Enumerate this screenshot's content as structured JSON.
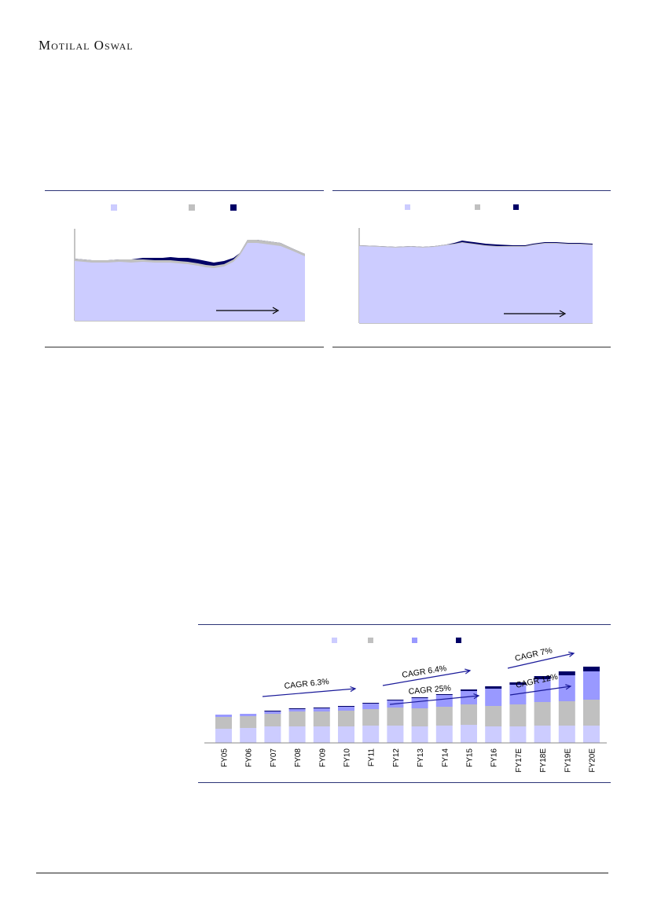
{
  "header": {
    "brand": "Motilal Oswal"
  },
  "colors": {
    "light_lavender": "#ccccff",
    "grey": "#c0c0c0",
    "medium_blue": "#9999ff",
    "navy": "#000066",
    "arrow": "#1a1a99",
    "rule": "#2c3577"
  },
  "left_chart": {
    "legend_colors": [
      "#ccccff",
      "#c0c0c0",
      "#000066"
    ]
  },
  "right_chart": {
    "legend_colors": [
      "#ccccff",
      "#c0c0c0",
      "#000066"
    ]
  },
  "chart_data": {
    "type": "bar",
    "stacked": true,
    "categories": [
      "FY05",
      "FY06",
      "FY07",
      "FY08",
      "FY09",
      "FY10",
      "FY11",
      "FY12",
      "FY13",
      "FY14",
      "FY15",
      "FY16",
      "FY17E",
      "FY18E",
      "FY19E",
      "FY20E"
    ],
    "series": [
      {
        "color": "#ccccff",
        "values": [
          18,
          19,
          21,
          21,
          21,
          21,
          22,
          22,
          21,
          22,
          23,
          21,
          21,
          22,
          22,
          22
        ]
      },
      {
        "color": "#c0c0c0",
        "values": [
          15,
          15,
          16,
          19,
          19,
          20,
          21,
          23,
          23,
          24,
          26,
          26,
          28,
          30,
          31,
          33
        ]
      },
      {
        "color": "#9999ff",
        "values": [
          3,
          3,
          3,
          3,
          4,
          5,
          7,
          9,
          13,
          15,
          17,
          22,
          25,
          29,
          33,
          36
        ]
      },
      {
        "color": "#000066",
        "values": [
          0,
          0,
          1,
          1,
          1,
          1,
          1,
          1,
          1,
          1,
          2,
          3,
          3,
          4,
          5,
          6
        ]
      }
    ],
    "ylim": [
      0,
      110
    ],
    "annotations": [
      "CAGR 6.3%",
      "CAGR 6.4%",
      "CAGR 25%",
      "CAGR 7%",
      "CAGR 12%"
    ]
  }
}
